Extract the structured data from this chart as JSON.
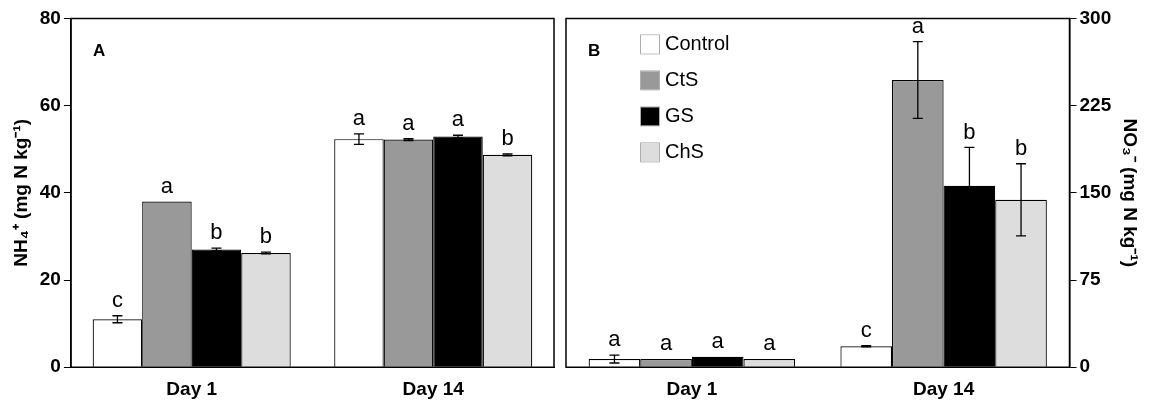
{
  "chart_data": [
    {
      "type": "bar",
      "categories": [
        "Day 1",
        "Day 14"
      ],
      "ylabel": "NH₄⁺ (mg N kg⁻¹)",
      "ylim": [
        0,
        80
      ],
      "yticks": [
        0,
        20,
        40,
        60,
        80
      ],
      "grid": false,
      "legend": false,
      "annotations": [
        "A"
      ],
      "series": [
        {
          "color": "#ffffff",
          "values": [
            11,
            52.3
          ],
          "errors": [
            0.8,
            1.2
          ],
          "value_labels": [
            "c",
            "a"
          ]
        },
        {
          "color": "#999999",
          "values": [
            38,
            52.2
          ],
          "errors": [
            null,
            0.2
          ],
          "value_labels": [
            "a",
            "a"
          ]
        },
        {
          "color": "#000000",
          "values": [
            27,
            52.9
          ],
          "errors": [
            0.3,
            0.3
          ],
          "value_labels": [
            "b",
            "a"
          ]
        },
        {
          "color": "#dddddd",
          "values": [
            26.2,
            48.7
          ],
          "errors": [
            0.2,
            0.2
          ],
          "value_labels": [
            "b",
            "b"
          ]
        }
      ]
    },
    {
      "type": "bar",
      "categories": [
        "Day 1",
        "Day 14"
      ],
      "y2label": "NO₃⁻ (mg N kg⁻¹)",
      "y2lim": [
        0,
        300
      ],
      "y2ticks": [
        0,
        75,
        150,
        225,
        300
      ],
      "grid": false,
      "legend": "top left",
      "annotations": [
        "B"
      ],
      "series": [
        {
          "name": "Control",
          "color": "#ffffff",
          "axis": "y2",
          "values": [
            7,
            18
          ],
          "errors": [
            3.4,
            0.5
          ],
          "value_labels": [
            "a",
            "c"
          ]
        },
        {
          "name": "CtS",
          "color": "#999999",
          "axis": "y2",
          "values": [
            7,
            247
          ],
          "errors": [
            null,
            33
          ],
          "value_labels": [
            "a",
            "a"
          ]
        },
        {
          "name": "GS",
          "color": "#000000",
          "axis": "y2",
          "values": [
            9,
            156
          ],
          "errors": [
            null,
            33
          ],
          "value_labels": [
            "a",
            "b"
          ]
        },
        {
          "name": "ChS",
          "color": "#dddddd",
          "axis": "y2",
          "values": [
            7,
            144
          ],
          "errors": [
            null,
            31
          ],
          "value_labels": [
            "a",
            "b"
          ]
        }
      ]
    }
  ]
}
